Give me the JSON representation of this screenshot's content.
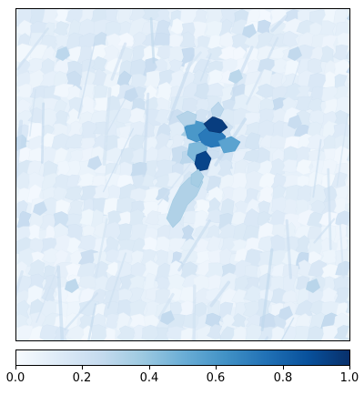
{
  "map": {
    "colormap": "Blues",
    "min": 0.0,
    "max": 1.0,
    "background_value": 0.08,
    "hotspot": {
      "description": "dense high-value cluster near center-right",
      "peak_value": 1.0
    }
  },
  "colorbar": {
    "ticks": [
      {
        "value": 0.0,
        "label": "0.0"
      },
      {
        "value": 0.2,
        "label": "0.2"
      },
      {
        "value": 0.4,
        "label": "0.4"
      },
      {
        "value": 0.6,
        "label": "0.6"
      },
      {
        "value": 0.8,
        "label": "0.8"
      },
      {
        "value": 1.0,
        "label": "1.0"
      }
    ],
    "colors": {
      "stop_0": "#f7fbff",
      "stop_1": "#deebf7",
      "stop_2": "#c6dbef",
      "stop_3": "#9ecae1",
      "stop_4": "#6baed6",
      "stop_5": "#4292c6",
      "stop_6": "#2171b5",
      "stop_7": "#08519c",
      "stop_8": "#08306b"
    }
  }
}
